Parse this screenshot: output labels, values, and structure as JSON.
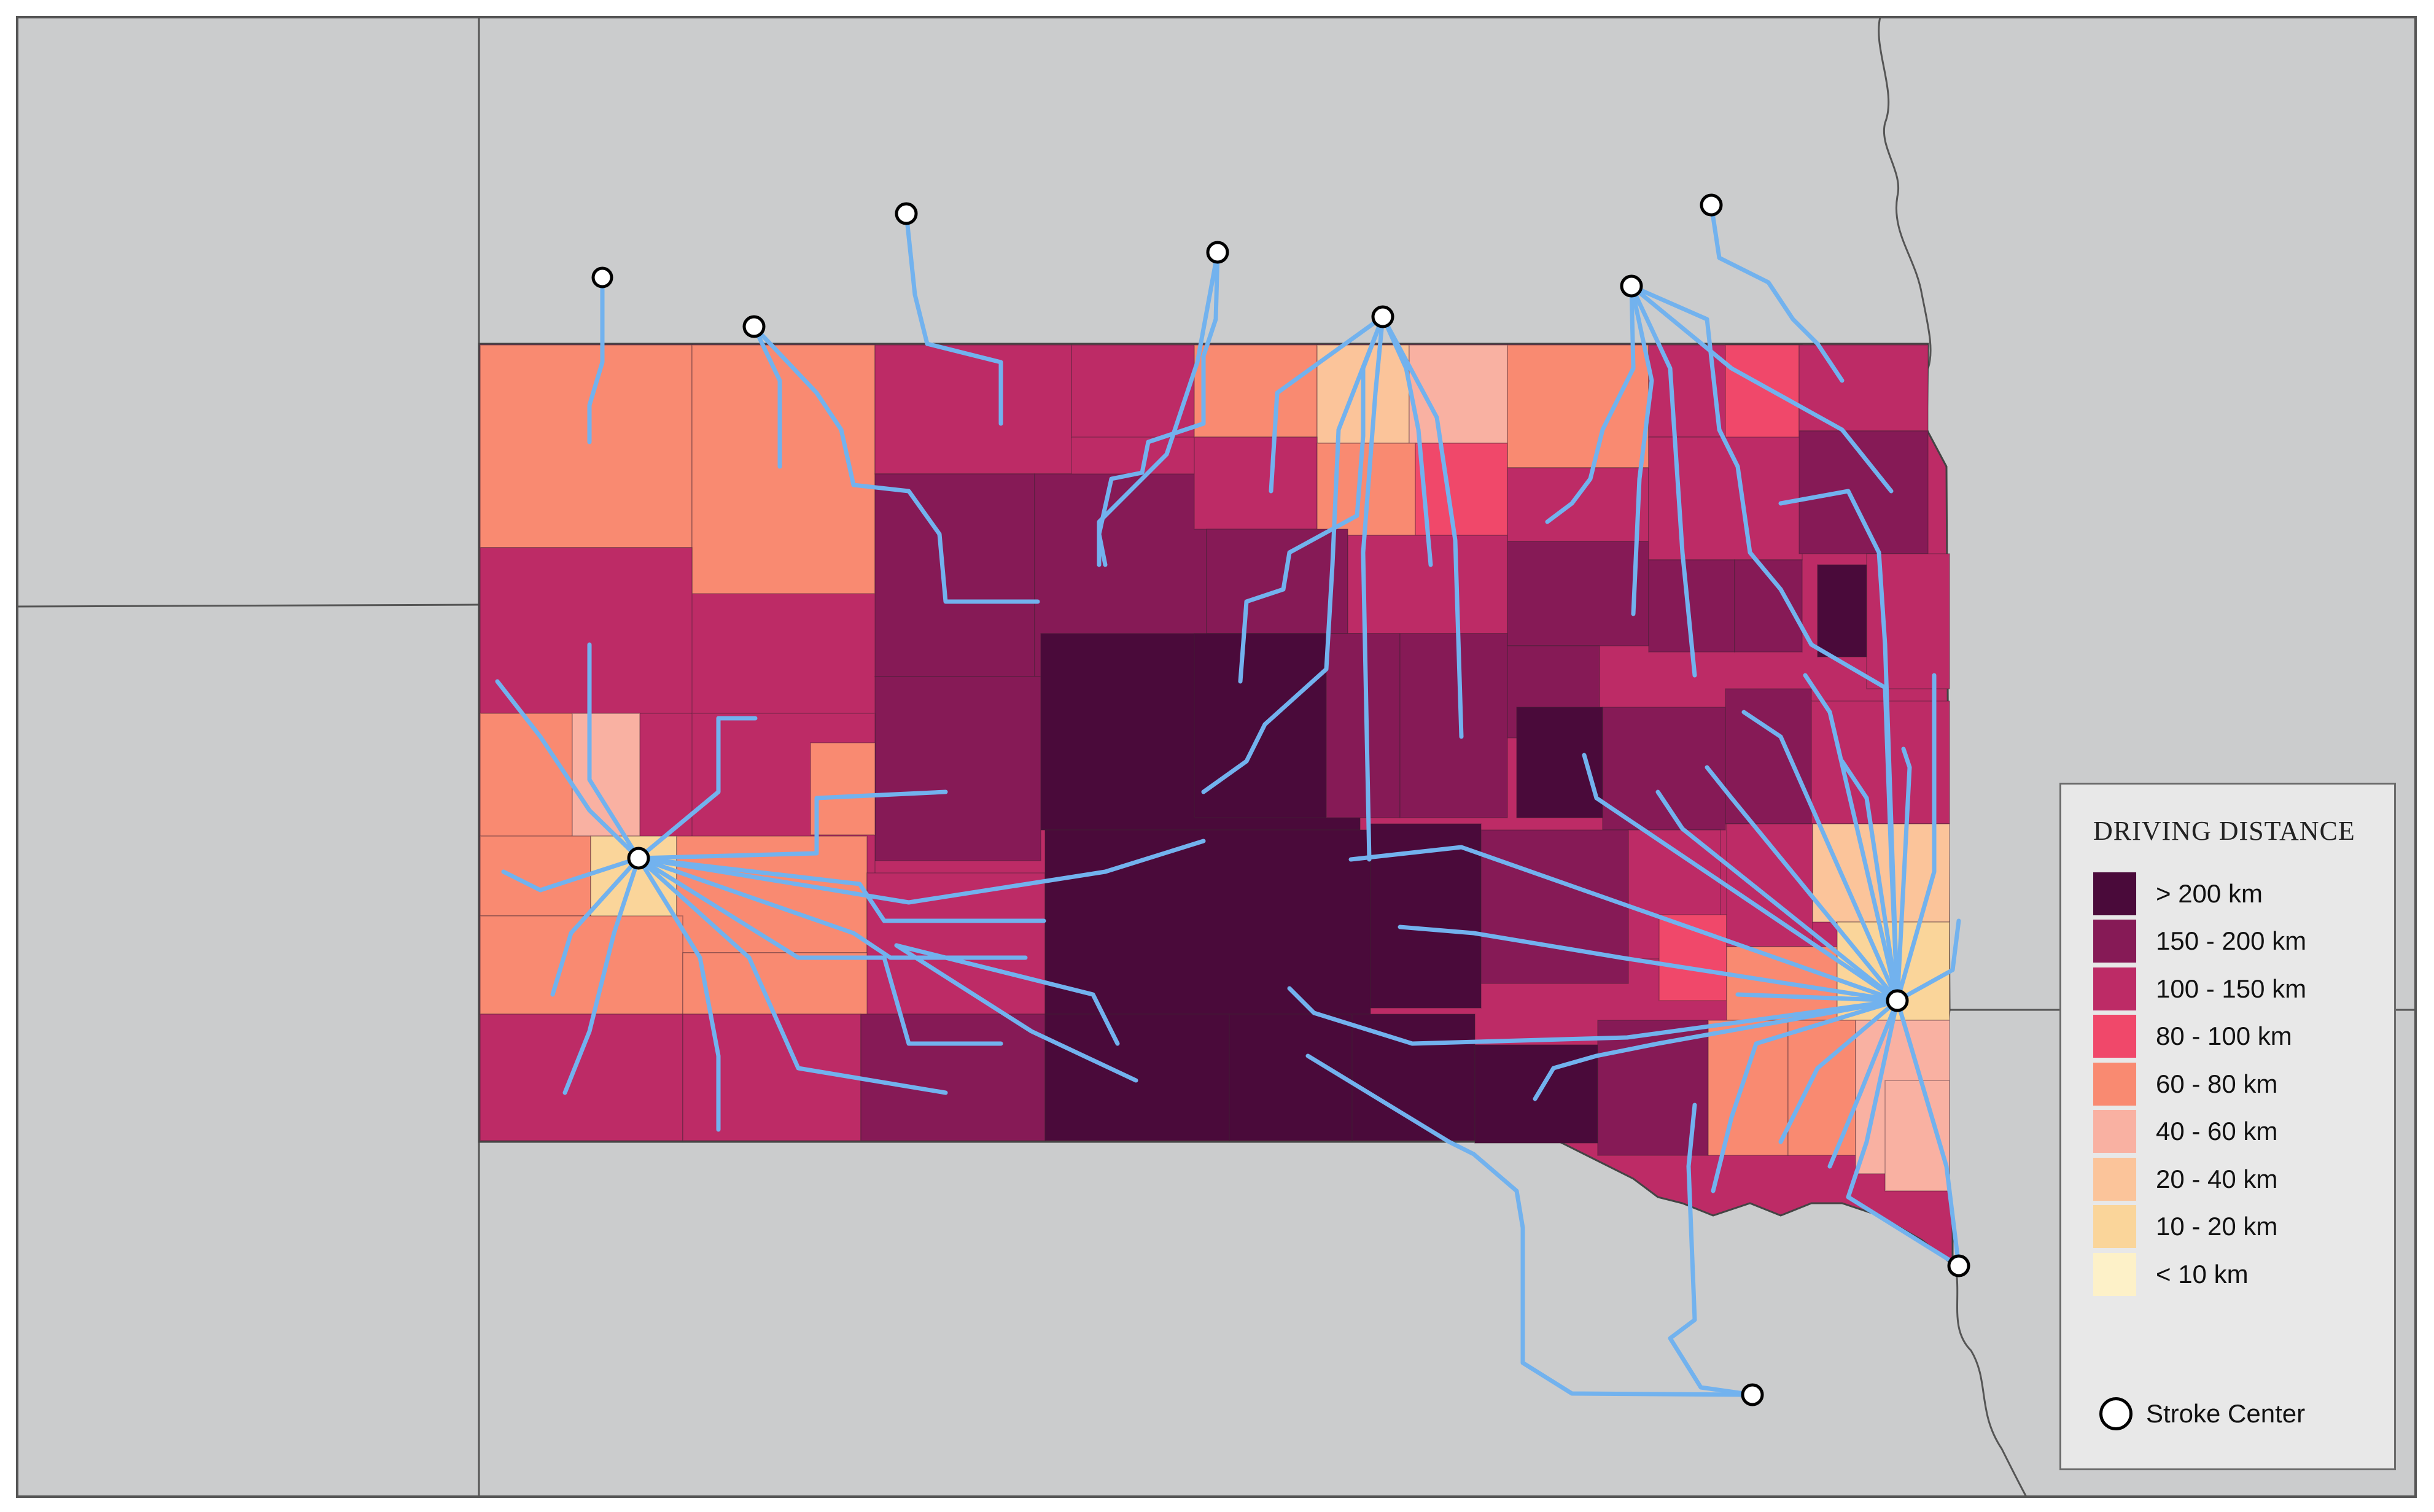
{
  "legend": {
    "title": "DRIVING DISTANCE",
    "classes": [
      {
        "label": "> 200 km",
        "color": "#4a0a3a"
      },
      {
        "label": "150 - 200 km",
        "color": "#861a56"
      },
      {
        "label": "100 - 150 km",
        "color": "#bd2b66"
      },
      {
        "label": "80 - 100 km",
        "color": "#f0486a"
      },
      {
        "label": "60 - 80 km",
        "color": "#f98a71"
      },
      {
        "label": "40 - 60 km",
        "color": "#f9b1a2"
      },
      {
        "label": "20 - 40 km",
        "color": "#fbc49a"
      },
      {
        "label": "10 - 20 km",
        "color": "#fad59a"
      },
      {
        "label": "< 10 km",
        "color": "#fdf1c8"
      }
    ],
    "stroke_center_label": "Stroke Center"
  },
  "colors": {
    "background_land": "#cbcccd",
    "route": "#72b2ee",
    "border": "#555555"
  }
}
